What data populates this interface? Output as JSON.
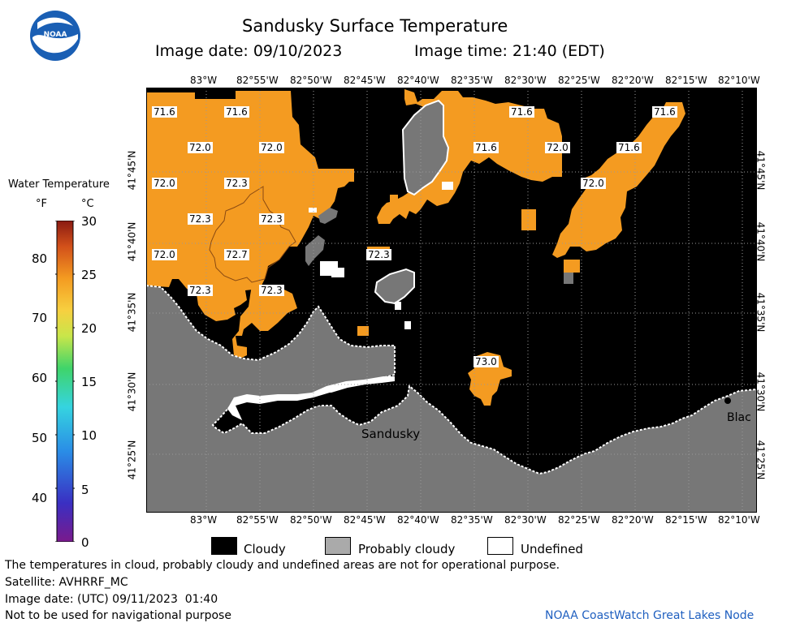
{
  "header": {
    "title": "Sandusky Surface Temperature",
    "image_date": "Image date: 09/10/2023",
    "image_time": "Image time: 21:40 (EDT)",
    "logo_text": "NOAA"
  },
  "map": {
    "lon_ticks": [
      "83°W",
      "82°55'W",
      "82°50'W",
      "82°45'W",
      "82°40'W",
      "82°35'W",
      "82°30'W",
      "82°25'W",
      "82°20'W",
      "82°15'W",
      "82°10'W"
    ],
    "lat_ticks": [
      "41°45'N",
      "41°40'N",
      "41°35'N",
      "41°30'N",
      "41°25'N"
    ],
    "place_labels": [
      "Sandusky",
      "Blac"
    ],
    "colors": {
      "water_orange": "#f49b21",
      "land": "#777777",
      "cloud": "#000000",
      "probably_cloudy": "#777777",
      "undefined": "#ffffff",
      "grid": "#9a9a9a"
    },
    "temp_labels": [
      "71.6",
      "71.6",
      "72.0",
      "72.0",
      "72.0",
      "72.3",
      "72.3",
      "72.3",
      "72.0",
      "72.7",
      "72.3",
      "72.3",
      "71.6",
      "71.6",
      "72.0",
      "71.6",
      "72.0",
      "71.6",
      "72.3",
      "73.0"
    ]
  },
  "scale": {
    "title": "Water Temperature",
    "unit_f": "°F",
    "unit_c": "°C",
    "f_ticks": [
      "80",
      "70",
      "60",
      "50",
      "40"
    ],
    "c_ticks": [
      "30",
      "25",
      "20",
      "15",
      "10",
      "5",
      "0"
    ]
  },
  "legend": {
    "cloudy": "Cloudy",
    "probably_cloudy": "Probably cloudy",
    "undefined": "Undefined"
  },
  "footer": {
    "note": "The temperatures in cloud, probably cloudy and undefined areas are not for operational purpose.",
    "satellite": "Satellite: AVHRRF_MC",
    "utc_date": "Image date: (UTC) 09/11/2023  01:40",
    "nav": "Not to be used for navigational purpose",
    "credit": "NOAA CoastWatch Great Lakes Node"
  }
}
